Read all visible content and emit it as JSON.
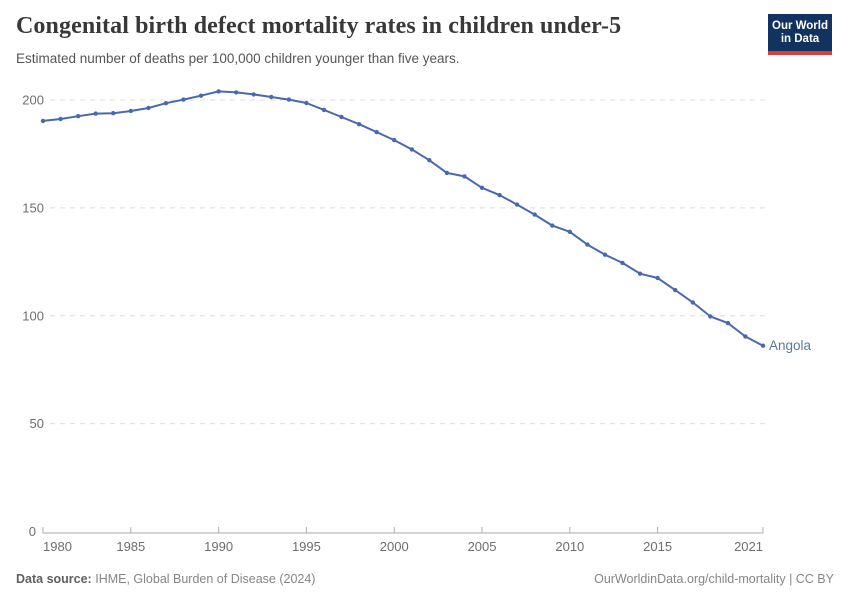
{
  "header": {
    "title": "Congenital birth defect mortality rates in children under-5",
    "subtitle": "Estimated number of deaths per 100,000 children younger than five years.",
    "logo": {
      "line1": "Our World",
      "line2": "in Data",
      "bg_color": "#12325f",
      "accent_color": "#dc3e32"
    }
  },
  "chart_data": {
    "type": "line",
    "title": "Congenital birth defect mortality rates in children under-5",
    "ylabel": "Estimated deaths per 100,000 children younger than five years",
    "x": [
      1980,
      1981,
      1982,
      1983,
      1984,
      1985,
      1986,
      1987,
      1988,
      1989,
      1990,
      1991,
      1992,
      1993,
      1994,
      1995,
      1996,
      1997,
      1998,
      1999,
      2000,
      2001,
      2002,
      2003,
      2004,
      2005,
      2006,
      2007,
      2008,
      2009,
      2010,
      2011,
      2012,
      2013,
      2014,
      2015,
      2016,
      2017,
      2018,
      2019,
      2020,
      2021
    ],
    "series": [
      {
        "name": "Angola",
        "color": "#4a69ad",
        "label_color": "#5b76ab",
        "values": [
          190.3,
          191.2,
          192.5,
          193.7,
          193.9,
          194.9,
          196.3,
          198.5,
          200.2,
          202.0,
          204.0,
          203.5,
          202.6,
          201.4,
          200.2,
          198.6,
          195.4,
          192.1,
          188.8,
          185.1,
          181.4,
          177.1,
          172.1,
          166.2,
          164.6,
          159.3,
          155.9,
          151.5,
          146.9,
          141.8,
          138.9,
          133.0,
          128.3,
          124.5,
          119.5,
          117.5,
          111.9,
          106.2,
          99.7,
          96.6,
          90.4,
          86.1
        ]
      }
    ],
    "end_label": "Angola",
    "x_ticks": [
      1980,
      1985,
      1990,
      1995,
      2000,
      2005,
      2010,
      2015,
      2021
    ],
    "y_ticks": [
      0,
      50,
      100,
      150,
      200
    ],
    "xlim": [
      1980,
      2021
    ],
    "ylim": [
      0,
      205
    ],
    "grid": "horizontal-dashed",
    "legend_position": "end-of-line"
  },
  "footer": {
    "datasource_label": "Data source:",
    "datasource_text": "IHME, Global Burden of Disease (2024)",
    "credit": "OurWorldinData.org/child-mortality | CC BY"
  }
}
